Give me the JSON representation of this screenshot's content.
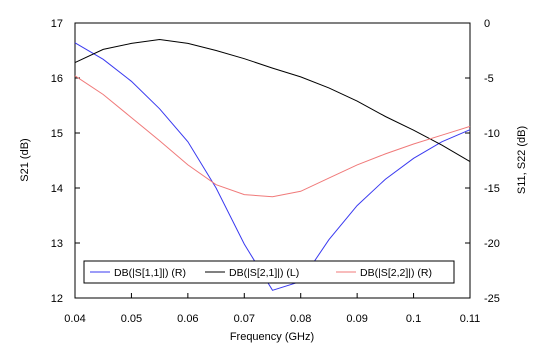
{
  "chart_data": {
    "type": "line",
    "xlabel": "Frequency (GHz)",
    "ylabel_left": "S21 (dB)",
    "ylabel_right": "S11, S22 (dB)",
    "xlim": [
      0.04,
      0.11
    ],
    "ylim_left": [
      12,
      17
    ],
    "ylim_right": [
      -25,
      0
    ],
    "x_ticks": [
      0.04,
      0.05,
      0.06,
      0.07,
      0.08,
      0.09,
      0.1,
      0.11
    ],
    "x_tick_labels": [
      "0.04",
      "0.05",
      "0.06",
      "0.07",
      "0.08",
      "0.09",
      "0.1",
      "0.11"
    ],
    "y_left_ticks": [
      12,
      13,
      14,
      15,
      16,
      17
    ],
    "y_left_tick_labels": [
      "12",
      "13",
      "14",
      "15",
      "16",
      "17"
    ],
    "y_right_ticks": [
      -25,
      -20,
      -15,
      -10,
      -5,
      0
    ],
    "y_right_tick_labels": [
      "-25",
      "-20",
      "-15",
      "-10",
      "-5",
      "0"
    ],
    "grid": false,
    "legend_placement": "bottom",
    "x": [
      0.04,
      0.045,
      0.05,
      0.055,
      0.06,
      0.065,
      0.07,
      0.075,
      0.08,
      0.085,
      0.09,
      0.095,
      0.1,
      0.105,
      0.11
    ],
    "series": [
      {
        "name": "DB(|S[1,1]|) (R)",
        "axis": "right",
        "color": "#3a3af0",
        "values": [
          -1.8,
          -3.3,
          -5.3,
          -7.8,
          -10.8,
          -15.0,
          -20.1,
          -24.3,
          -23.5,
          -19.7,
          -16.6,
          -14.2,
          -12.3,
          -10.8,
          -9.7
        ]
      },
      {
        "name": "DB(|S[2,1]|) (L)",
        "axis": "left",
        "color": "#000000",
        "values": [
          16.28,
          16.52,
          16.63,
          16.7,
          16.63,
          16.5,
          16.35,
          16.18,
          16.02,
          15.82,
          15.58,
          15.3,
          15.05,
          14.78,
          14.48
        ]
      },
      {
        "name": "DB(|S[2,2]|) (R)",
        "axis": "right",
        "color": "#f07a7a",
        "values": [
          -4.8,
          -6.5,
          -8.6,
          -10.7,
          -12.9,
          -14.7,
          -15.6,
          -15.8,
          -15.3,
          -14.1,
          -12.9,
          -11.9,
          -11.0,
          -10.2,
          -9.4
        ]
      }
    ]
  }
}
